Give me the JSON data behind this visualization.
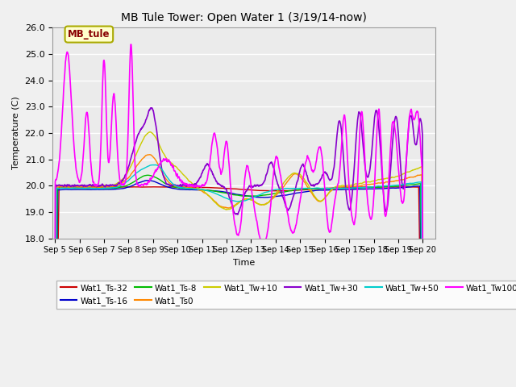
{
  "title": "MB Tule Tower: Open Water 1 (3/19/14-now)",
  "xlabel": "Time",
  "ylabel": "Temperature (C)",
  "ylim": [
    18.0,
    26.0
  ],
  "yticks": [
    18.0,
    19.0,
    20.0,
    21.0,
    22.0,
    23.0,
    24.0,
    25.0,
    26.0
  ],
  "bg_color": "#ebebeb",
  "series": {
    "Wat1_Ts-32": {
      "color": "#cc0000",
      "lw": 1.0
    },
    "Wat1_Ts-16": {
      "color": "#0000cc",
      "lw": 1.0
    },
    "Wat1_Ts-8": {
      "color": "#00bb00",
      "lw": 1.0
    },
    "Wat1_Ts0": {
      "color": "#ff8800",
      "lw": 1.0
    },
    "Wat1_Tw+10": {
      "color": "#cccc00",
      "lw": 1.0
    },
    "Wat1_Tw+30": {
      "color": "#8800cc",
      "lw": 1.2
    },
    "Wat1_Tw+50": {
      "color": "#00cccc",
      "lw": 1.0
    },
    "Wat1_Tw100": {
      "color": "#ff00ff",
      "lw": 1.2
    }
  },
  "xtick_labels": [
    "Sep 5",
    "Sep 6",
    "Sep 7",
    "Sep 8",
    "Sep 9",
    "Sep 10",
    "Sep 11",
    "Sep 12",
    "Sep 13",
    "Sep 14",
    "Sep 15",
    "Sep 16",
    "Sep 17",
    "Sep 18",
    "Sep 19",
    "Sep 20"
  ],
  "legend_label": "MB_tule",
  "legend_bg": "#ffffcc",
  "legend_text_color": "#880000"
}
